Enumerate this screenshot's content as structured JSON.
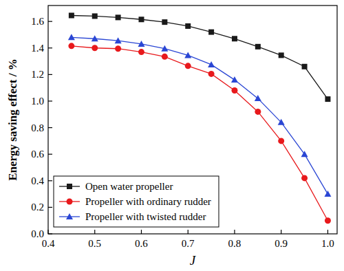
{
  "chart_data": {
    "type": "line",
    "x_label": "J",
    "y_label": "Energy saving effect / %",
    "x": [
      0.45,
      0.5,
      0.55,
      0.6,
      0.65,
      0.7,
      0.75,
      0.8,
      0.85,
      0.9,
      0.95,
      1.0
    ],
    "series": [
      {
        "name": "Open water propeller",
        "color": "#1a1a1a",
        "marker": "square",
        "values": [
          1.645,
          1.64,
          1.63,
          1.615,
          1.595,
          1.565,
          1.52,
          1.47,
          1.41,
          1.345,
          1.26,
          1.015
        ]
      },
      {
        "name": "Propeller with ordinary rudder",
        "color": "#e8191c",
        "marker": "circle",
        "values": [
          1.415,
          1.4,
          1.395,
          1.37,
          1.335,
          1.265,
          1.205,
          1.08,
          0.92,
          0.7,
          0.42,
          0.1
        ]
      },
      {
        "name": "Propeller with twisted rudder",
        "color": "#2a46d4",
        "marker": "triangle",
        "values": [
          1.48,
          1.47,
          1.455,
          1.43,
          1.395,
          1.345,
          1.275,
          1.16,
          1.02,
          0.84,
          0.6,
          0.3
        ]
      }
    ],
    "xlim": [
      0.4,
      1.02
    ],
    "ylim": [
      0,
      1.72
    ],
    "xticks": [
      0.4,
      0.5,
      0.6,
      0.7,
      0.8,
      0.9,
      {
        "value": 1.0,
        "label": "1.0"
      }
    ],
    "yticks": [
      {
        "value": 0,
        "label": "0.0"
      },
      0.2,
      0.4,
      0.6,
      0.8,
      {
        "value": 1.0,
        "label": "1.0"
      },
      1.2,
      1.4,
      1.6
    ],
    "legend": "lower left",
    "grid": false
  }
}
